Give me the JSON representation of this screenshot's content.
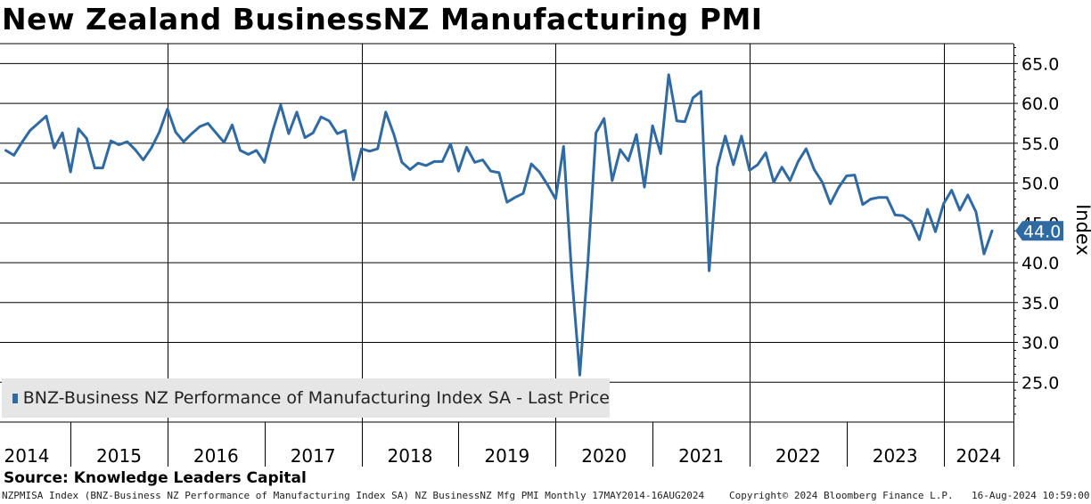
{
  "title": "New Zealand BusinessNZ Manufacturing PMI",
  "source": "Source: Knowledge Leaders Capital",
  "footer": {
    "left": "NZPMISA Index (BNZ-Business NZ Performance of Manufacturing Index SA) NZ BusinessNZ Mfg PMI  Monthly 17MAY2014-16AUG2024",
    "copyright": "Copyright© 2024 Bloomberg Finance L.P.",
    "timestamp": "16-Aug-2024 10:59:00"
  },
  "colors": {
    "line": "#2f6aa3",
    "label_bg": "#2f6aa3",
    "grid": "#000000"
  },
  "chart_data": {
    "type": "line",
    "title": "New Zealand BusinessNZ Manufacturing PMI",
    "ylabel": "Index",
    "ylim": [
      20,
      67.5
    ],
    "yticks": [
      "65.0",
      "60.0",
      "55.0",
      "50.0",
      "45.0",
      "40.0",
      "35.0",
      "30.0",
      "25.0"
    ],
    "xlabels": [
      "2014",
      "2015",
      "2016",
      "2017",
      "2018",
      "2019",
      "2020",
      "2021",
      "2022",
      "2023",
      "2024"
    ],
    "last_value_label": "44.0",
    "legend": "BNZ-Business NZ Performance of Manufacturing Index SA - Last Price",
    "series": [
      {
        "name": "BNZ-Business NZ Performance of Manufacturing Index SA - Last Price",
        "start": "2014-05",
        "frequency": "monthly",
        "values": [
          54.1,
          53.5,
          55.1,
          56.6,
          57.5,
          58.4,
          54.4,
          56.3,
          51.4,
          56.8,
          55.6,
          51.9,
          51.9,
          55.3,
          54.8,
          55.2,
          54.2,
          52.9,
          54.4,
          56.4,
          59.3,
          56.4,
          55.2,
          56.2,
          57.1,
          57.5,
          56.3,
          55.1,
          57.3,
          54.1,
          53.6,
          54.1,
          52.6,
          56.5,
          59.8,
          56.2,
          58.9,
          55.7,
          56.3,
          58.3,
          57.8,
          56.2,
          56.6,
          50.4,
          54.3,
          54.0,
          54.3,
          58.9,
          56.1,
          52.6,
          51.7,
          52.5,
          52.2,
          52.7,
          52.7,
          54.9,
          51.5,
          54.5,
          52.6,
          52.9,
          51.5,
          51.3,
          47.6,
          48.2,
          48.7,
          52.4,
          51.4,
          49.8,
          48.0,
          54.6,
          38.5,
          25.9,
          39.9,
          56.3,
          58.1,
          50.3,
          54.2,
          52.8,
          56.1,
          49.5,
          57.2,
          53.7,
          63.6,
          57.8,
          57.7,
          60.7,
          61.5,
          39.0,
          52.0,
          55.9,
          52.3,
          55.9,
          51.6,
          52.3,
          53.8,
          50.1,
          52.0,
          50.3,
          52.7,
          54.3,
          51.7,
          50.1,
          47.4,
          49.4,
          50.9,
          51.0,
          47.3,
          48.0,
          48.2,
          48.2,
          46.0,
          45.9,
          45.2,
          42.9,
          46.7,
          43.9,
          47.4,
          49.1,
          46.6,
          48.5,
          46.4,
          41.1,
          44.0
        ]
      }
    ]
  }
}
